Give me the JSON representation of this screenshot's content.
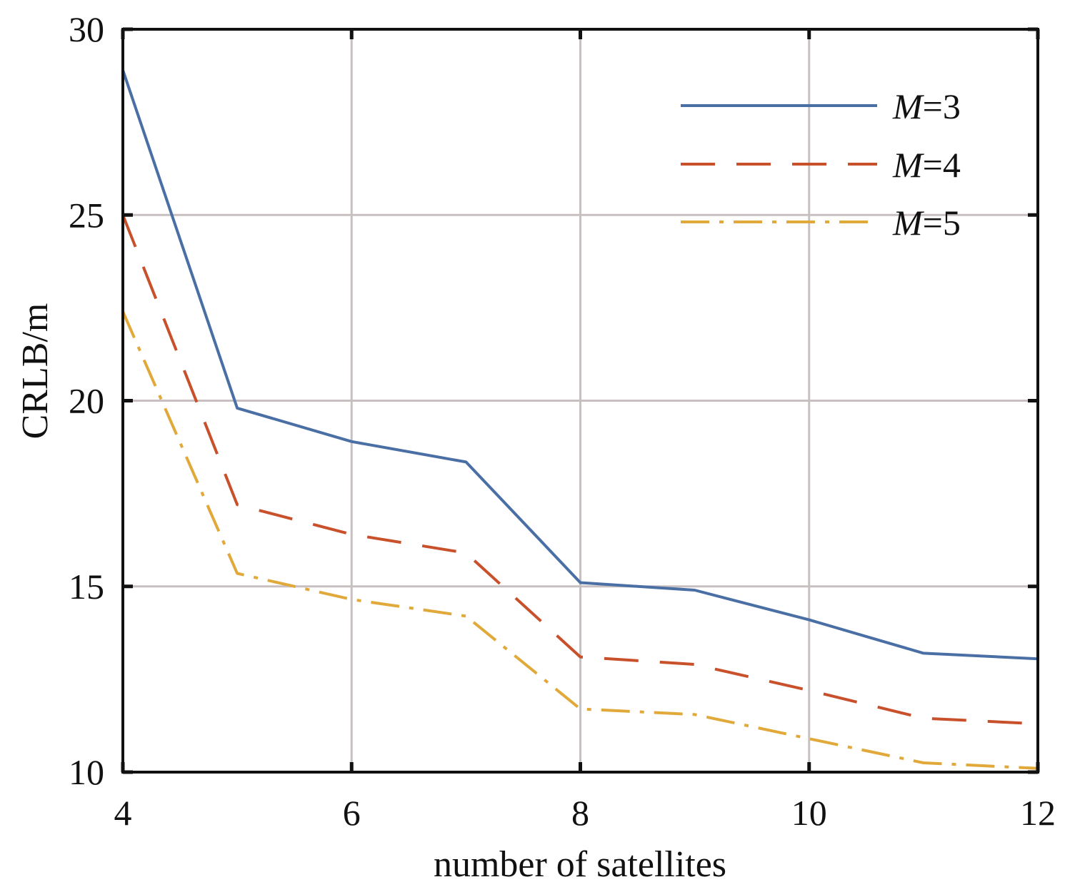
{
  "chart_data": {
    "type": "line",
    "xlabel": "number of satellites",
    "ylabel": "CRLB/m",
    "xlim": [
      4,
      12
    ],
    "ylim": [
      10,
      30
    ],
    "xticks": [
      "4",
      "6",
      "8",
      "10",
      "12"
    ],
    "yticks": [
      "10",
      "15",
      "20",
      "25",
      "30"
    ],
    "grid": true,
    "legend_position": "top-right",
    "x": [
      4,
      5,
      6,
      7,
      8,
      9,
      10,
      11,
      12
    ],
    "series": [
      {
        "name_prefix": "M",
        "name_suffix": "=3",
        "color": "#4a6fa5",
        "style": "solid",
        "values": [
          28.9,
          19.8,
          18.9,
          18.35,
          15.1,
          14.9,
          14.1,
          13.2,
          13.05
        ]
      },
      {
        "name_prefix": "M",
        "name_suffix": "=4",
        "color": "#c8502a",
        "style": "dashed",
        "values": [
          25.0,
          17.2,
          16.4,
          15.9,
          13.1,
          12.9,
          12.2,
          11.45,
          11.3
        ]
      },
      {
        "name_prefix": "M",
        "name_suffix": "=5",
        "color": "#e0a93a",
        "style": "dashdot",
        "values": [
          22.4,
          15.35,
          14.65,
          14.2,
          11.7,
          11.55,
          10.9,
          10.25,
          10.1
        ]
      }
    ]
  }
}
